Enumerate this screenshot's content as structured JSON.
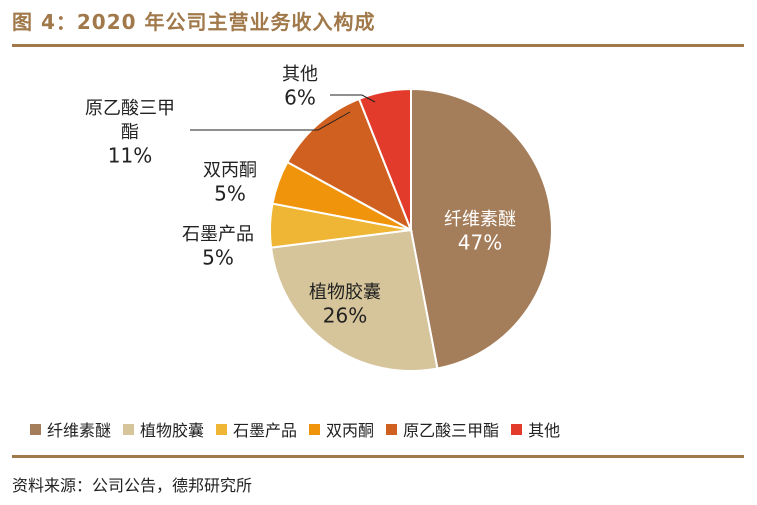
{
  "header": {
    "title": "图 4：2020 年公司主营业务收入构成"
  },
  "footer": {
    "source": "资料来源：公司公告，德邦研究所"
  },
  "chart_data": {
    "type": "pie",
    "title": "",
    "slices": [
      {
        "name": "纤维素醚",
        "label_lines": [
          "纤维素醚"
        ],
        "value": 47,
        "value_label": "47%",
        "color": "#a47d5a",
        "text_color": "#ffffff"
      },
      {
        "name": "植物胶囊",
        "label_lines": [
          "植物胶囊"
        ],
        "value": 26,
        "value_label": "26%",
        "color": "#d6c49a",
        "text_color": "#222222"
      },
      {
        "name": "石墨产品",
        "label_lines": [
          "石墨产品"
        ],
        "value": 5,
        "value_label": "5%",
        "color": "#efb535",
        "text_color": "#222222"
      },
      {
        "name": "双丙酮",
        "label_lines": [
          "双丙酮"
        ],
        "value": 5,
        "value_label": "5%",
        "color": "#f0940b",
        "text_color": "#222222"
      },
      {
        "name": "原乙酸三甲酯",
        "label_lines": [
          "原乙酸三甲",
          "酯"
        ],
        "value": 11,
        "value_label": "11%",
        "color": "#d0601f",
        "text_color": "#222222"
      },
      {
        "name": "其他",
        "label_lines": [
          "其他"
        ],
        "value": 6,
        "value_label": "6%",
        "color": "#e33b2b",
        "text_color": "#222222"
      }
    ],
    "legend": {
      "position": "bottom"
    }
  }
}
